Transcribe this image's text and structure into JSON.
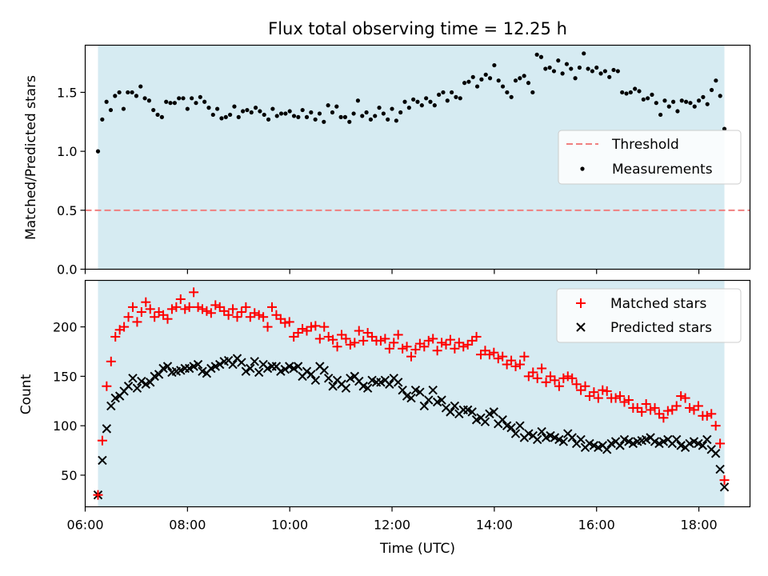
{
  "figure": {
    "title": "Flux total observing time = 12.25 h",
    "xlabel": "Time (UTC)"
  },
  "colors": {
    "shade": "#add8e6",
    "threshold": "#f08080",
    "measurement": "#000000",
    "matched": "#ff0000",
    "predicted": "#000000",
    "axes": "#000000"
  },
  "chart_data": [
    {
      "type": "scatter",
      "ylabel": "Matched/Predicted stars",
      "xlim": [
        "06:00",
        "19:00"
      ],
      "ylim": [
        0,
        1.9
      ],
      "yticks": [
        0.0,
        0.5,
        1.0,
        1.5
      ],
      "ytick_labels": [
        "0.0",
        "0.5",
        "1.0",
        "1.5"
      ],
      "shaded_span": [
        "06:15",
        "18:30"
      ],
      "legend": {
        "placement": "center-right",
        "entries": [
          "Threshold",
          "Measurements"
        ]
      },
      "threshold": {
        "name": "Threshold",
        "value": 0.5,
        "style": "dashed"
      },
      "series": [
        {
          "name": "Measurements",
          "marker": "dot",
          "x_start": "06:15",
          "x_end": "18:30",
          "values": [
            1.0,
            1.27,
            1.42,
            1.35,
            1.47,
            1.5,
            1.36,
            1.5,
            1.5,
            1.47,
            1.55,
            1.45,
            1.43,
            1.35,
            1.31,
            1.29,
            1.42,
            1.41,
            1.41,
            1.45,
            1.45,
            1.36,
            1.45,
            1.41,
            1.46,
            1.42,
            1.37,
            1.31,
            1.36,
            1.28,
            1.29,
            1.31,
            1.38,
            1.29,
            1.34,
            1.35,
            1.33,
            1.37,
            1.34,
            1.31,
            1.27,
            1.36,
            1.3,
            1.32,
            1.32,
            1.34,
            1.3,
            1.29,
            1.35,
            1.29,
            1.33,
            1.27,
            1.32,
            1.25,
            1.39,
            1.33,
            1.38,
            1.29,
            1.29,
            1.25,
            1.32,
            1.43,
            1.3,
            1.33,
            1.27,
            1.3,
            1.37,
            1.32,
            1.27,
            1.36,
            1.26,
            1.33,
            1.42,
            1.37,
            1.44,
            1.42,
            1.39,
            1.45,
            1.42,
            1.39,
            1.48,
            1.5,
            1.43,
            1.5,
            1.46,
            1.45,
            1.58,
            1.59,
            1.63,
            1.55,
            1.61,
            1.65,
            1.62,
            1.73,
            1.6,
            1.55,
            1.5,
            1.46,
            1.6,
            1.62,
            1.64,
            1.58,
            1.5,
            1.82,
            1.8,
            1.7,
            1.71,
            1.68,
            1.77,
            1.66,
            1.74,
            1.7,
            1.62,
            1.71,
            1.83,
            1.7,
            1.68,
            1.71,
            1.66,
            1.68,
            1.63,
            1.69,
            1.68,
            1.5,
            1.49,
            1.5,
            1.53,
            1.51,
            1.44,
            1.45,
            1.48,
            1.41,
            1.31,
            1.43,
            1.38,
            1.42,
            1.34,
            1.43,
            1.42,
            1.41,
            1.38,
            1.43,
            1.46,
            1.4,
            1.52,
            1.6,
            1.47,
            1.19
          ]
        }
      ]
    },
    {
      "type": "scatter",
      "ylabel": "Count",
      "xlim": [
        "06:00",
        "19:00"
      ],
      "ylim": [
        18,
        247
      ],
      "yticks": [
        50,
        100,
        150,
        200
      ],
      "ytick_labels": [
        "50",
        "100",
        "150",
        "200"
      ],
      "xticks": [
        "06:00",
        "08:00",
        "10:00",
        "12:00",
        "14:00",
        "16:00",
        "18:00"
      ],
      "shaded_span": [
        "06:15",
        "18:30"
      ],
      "legend": {
        "placement": "top-right",
        "entries": [
          "Matched stars",
          "Predicted stars"
        ]
      },
      "series": [
        {
          "name": "Matched stars",
          "marker": "plus",
          "x_start": "06:15",
          "x_end": "18:30",
          "values": [
            30,
            85,
            140,
            165,
            190,
            197,
            200,
            210,
            220,
            205,
            215,
            225,
            218,
            210,
            215,
            212,
            208,
            218,
            220,
            228,
            218,
            220,
            235,
            220,
            218,
            216,
            214,
            222,
            220,
            216,
            212,
            218,
            210,
            215,
            220,
            210,
            214,
            212,
            210,
            200,
            220,
            212,
            208,
            204,
            205,
            190,
            194,
            198,
            196,
            200,
            201,
            188,
            200,
            190,
            187,
            180,
            192,
            188,
            182,
            184,
            196,
            186,
            194,
            190,
            186,
            186,
            188,
            178,
            184,
            192,
            178,
            180,
            170,
            177,
            183,
            180,
            186,
            188,
            176,
            184,
            182,
            187,
            178,
            184,
            180,
            182,
            186,
            190,
            172,
            176,
            172,
            174,
            168,
            170,
            162,
            166,
            160,
            162,
            170,
            150,
            154,
            148,
            158,
            144,
            150,
            146,
            140,
            148,
            150,
            148,
            142,
            136,
            140,
            130,
            134,
            128,
            136,
            135,
            128,
            128,
            130,
            124,
            126,
            118,
            118,
            114,
            122,
            116,
            118,
            112,
            108,
            115,
            116,
            120,
            130,
            128,
            118,
            116,
            120,
            110,
            110,
            112,
            100,
            82,
            45
          ]
        },
        {
          "name": "Predicted stars",
          "marker": "x",
          "x_start": "06:15",
          "x_end": "18:30",
          "values": [
            30,
            65,
            97,
            120,
            128,
            130,
            135,
            140,
            148,
            138,
            145,
            142,
            144,
            150,
            152,
            158,
            160,
            154,
            155,
            156,
            158,
            158,
            160,
            162,
            155,
            153,
            158,
            160,
            162,
            165,
            166,
            162,
            168,
            164,
            155,
            158,
            165,
            154,
            162,
            158,
            160,
            160,
            155,
            157,
            160,
            158,
            160,
            150,
            155,
            152,
            146,
            160,
            156,
            148,
            140,
            146,
            142,
            138,
            148,
            150,
            145,
            140,
            138,
            146,
            144,
            144,
            146,
            142,
            148,
            144,
            136,
            130,
            128,
            136,
            134,
            120,
            126,
            136,
            124,
            126,
            118,
            114,
            120,
            112,
            116,
            116,
            114,
            106,
            108,
            104,
            112,
            114,
            102,
            106,
            100,
            98,
            92,
            100,
            88,
            92,
            90,
            86,
            94,
            88,
            90,
            88,
            86,
            84,
            92,
            88,
            82,
            86,
            78,
            82,
            80,
            78,
            80,
            76,
            82,
            84,
            80,
            86,
            84,
            82,
            84,
            85,
            86,
            88,
            84,
            82,
            84,
            86,
            82,
            86,
            80,
            78,
            82,
            84,
            82,
            80,
            86,
            76,
            72,
            56,
            38
          ]
        }
      ]
    }
  ]
}
